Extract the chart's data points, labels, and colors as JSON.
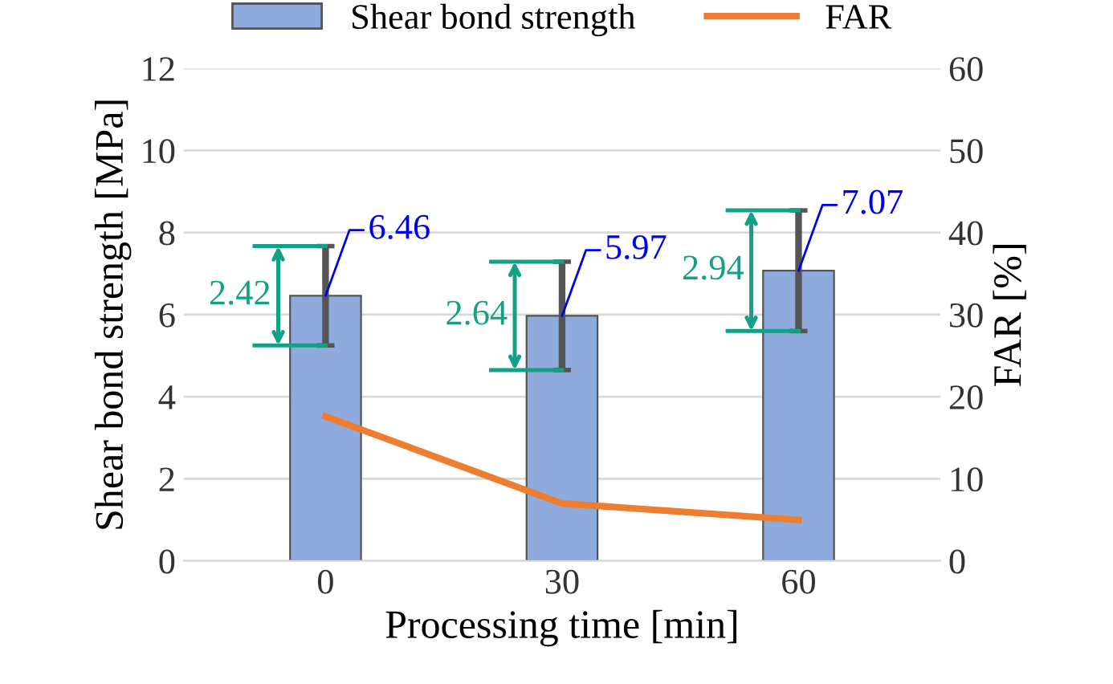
{
  "chart_data": {
    "type": "bar",
    "xlabel": "Processing time [min]",
    "ylabel": "Shear bond strength [MPa]",
    "y2label": "FAR [%]",
    "categories": [
      "0",
      "30",
      "60"
    ],
    "series": [
      {
        "name": "Shear bond strength",
        "color": "#8faadc",
        "values": [
          6.46,
          5.97,
          7.07
        ],
        "errors": [
          1.21,
          1.32,
          1.47
        ],
        "value_labels": [
          "6.46",
          "5.97",
          "7.07"
        ]
      },
      {
        "name": "FAR",
        "type": "line",
        "axis": "y2",
        "color": "#ed7d31",
        "values": [
          17.6,
          7.0,
          5.0
        ]
      }
    ],
    "annotations": [
      {
        "text": "2.42",
        "x": "0",
        "y": 6.46
      },
      {
        "text": "2.64",
        "x": "30",
        "y": 5.97
      },
      {
        "text": "2.94",
        "x": "60",
        "y": 7.07
      }
    ],
    "ylim": [
      0,
      12
    ],
    "yticks": [
      0,
      2,
      4,
      6,
      8,
      10,
      12
    ],
    "y2lim": [
      0,
      60
    ],
    "y2ticks": [
      0,
      10,
      20,
      30,
      40,
      50,
      60
    ],
    "grid": "y",
    "legend": "top"
  }
}
